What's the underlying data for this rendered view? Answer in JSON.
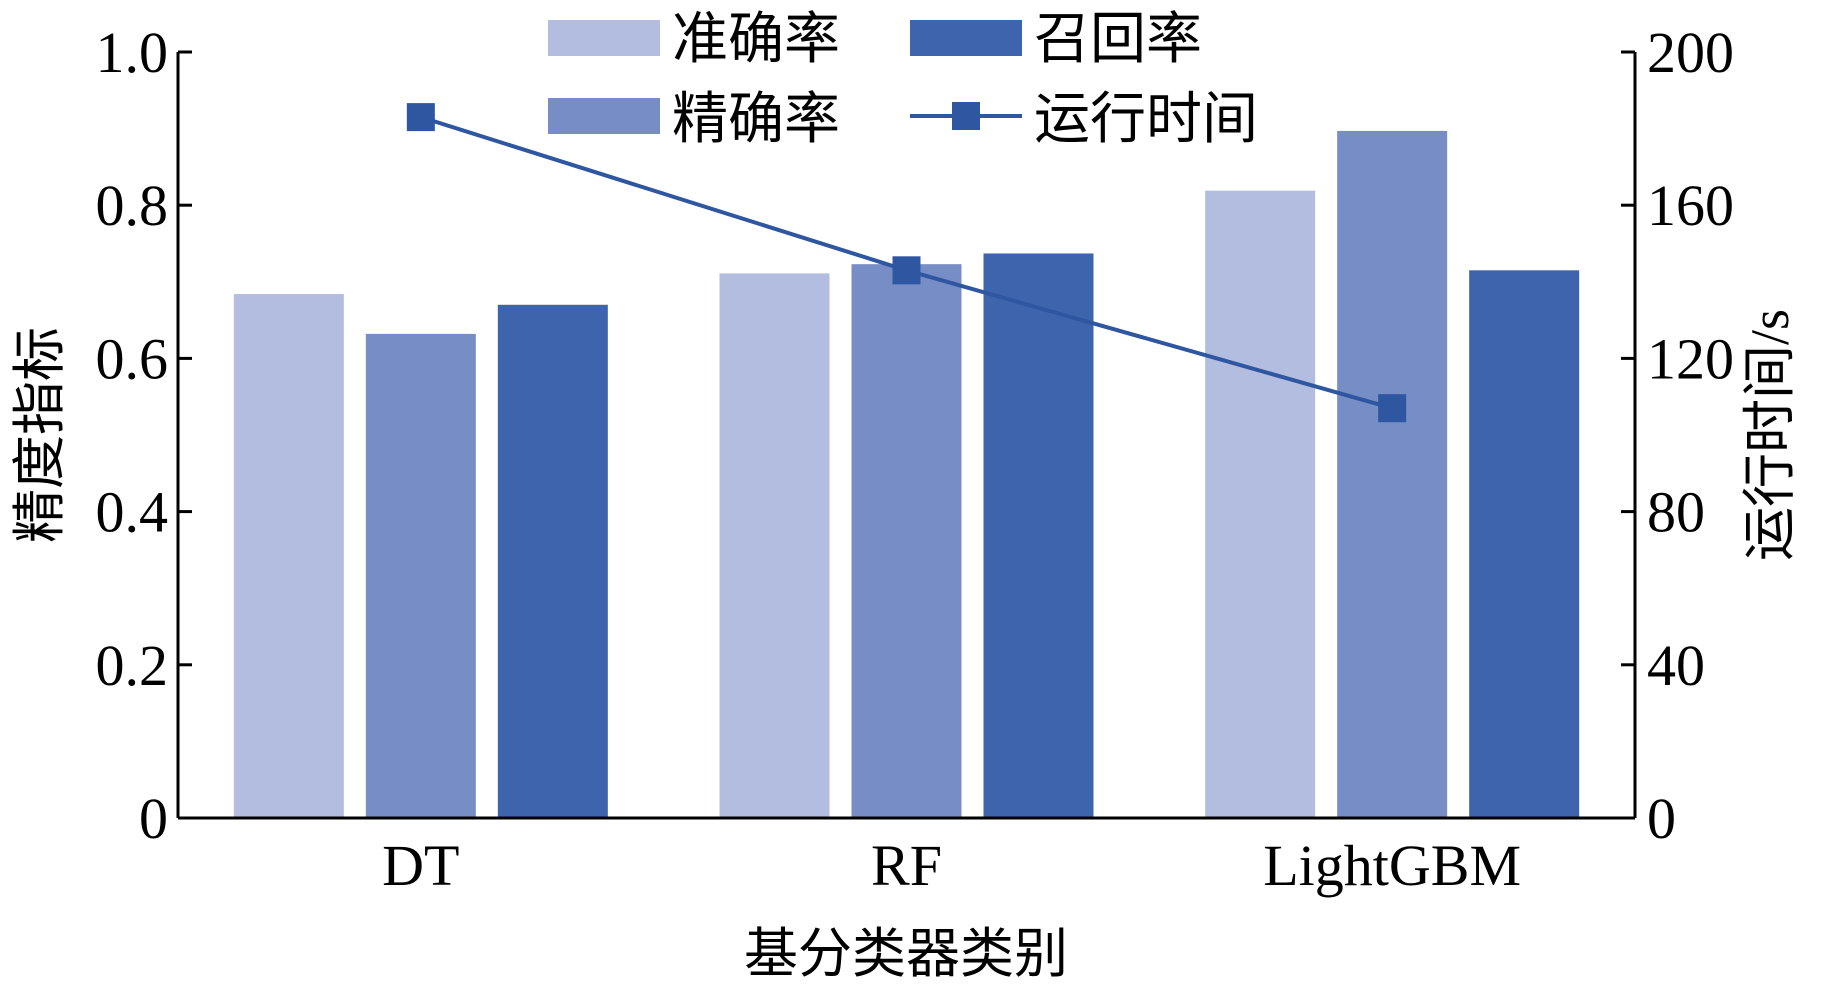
{
  "chart_data": {
    "type": "bar",
    "categories": [
      "DT",
      "RF",
      "LightGBM"
    ],
    "xlabel": "基分类器类别",
    "ylabel": "精度指标",
    "ylabel_right": "运行时间/s",
    "ylim": [
      0,
      1.0
    ],
    "ylim_right": [
      0,
      200
    ],
    "yticks": [
      "0",
      "0.2",
      "0.4",
      "0.6",
      "0.8",
      "1.0"
    ],
    "yticks_right": [
      "0",
      "40",
      "80",
      "120",
      "160",
      "200"
    ],
    "series": [
      {
        "name": "准确率",
        "type": "bar",
        "axis": "left",
        "color": "#b3bddf",
        "values": [
          0.684,
          0.711,
          0.819
        ]
      },
      {
        "name": "精确率",
        "type": "bar",
        "axis": "left",
        "color": "#778dc6",
        "values": [
          0.632,
          0.723,
          0.897
        ]
      },
      {
        "name": "召回率",
        "type": "bar",
        "axis": "left",
        "color": "#3e64ae",
        "values": [
          0.67,
          0.737,
          0.715
        ]
      },
      {
        "name": "运行时间",
        "type": "line",
        "axis": "right",
        "marker": "square",
        "color": "#2f56a0",
        "values": [
          183,
          143,
          107
        ]
      }
    ],
    "legend_position": "top-center",
    "grid": false
  }
}
